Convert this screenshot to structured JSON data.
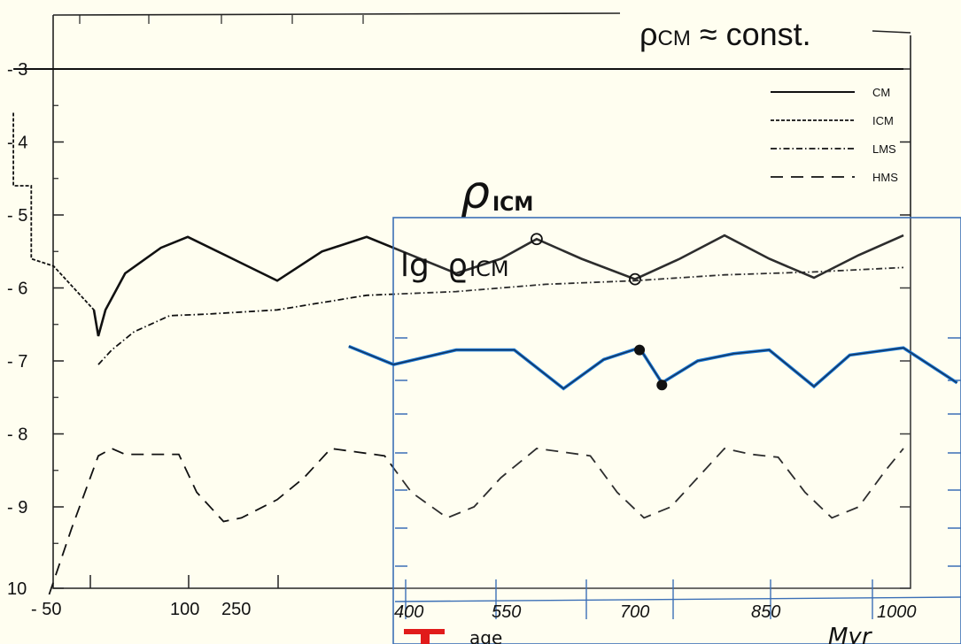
{
  "header_note": {
    "rho": "ρ",
    "sub": "CM",
    "rest": " ≈ const."
  },
  "colors": {
    "background": "#fffef0",
    "ink": "#111111",
    "blue": "#1a78d6",
    "border_blue": "#3b6fb6",
    "tag_red": "#e11b1b"
  },
  "chart_data": {
    "type": "line",
    "title": "",
    "xlabel": "",
    "ylabel": "",
    "xlim": [
      10,
      1060
    ],
    "ylim": [
      -10,
      -2.15
    ],
    "grid": false,
    "legend_placement": "top-right",
    "x_ticks": [
      "- 50",
      "100",
      "250",
      "400",
      "550",
      "700",
      "850",
      "1000"
    ],
    "y_ticks": [
      "- 3",
      "- 4",
      "- 5",
      "- 6",
      "- 7",
      "- 8",
      "- 9",
      "10"
    ],
    "legend": [
      {
        "label": "CM",
        "style": "solid"
      },
      {
        "label": "ICM",
        "style": "dotted"
      },
      {
        "label": "LMS",
        "style": "dashdot"
      },
      {
        "label": "HMS",
        "style": "dashed"
      }
    ],
    "series": [
      {
        "name": "CM",
        "style": "solid",
        "x": [
          5,
          1000
        ],
        "y": [
          -3.0,
          -3.0
        ]
      },
      {
        "name": "ICM",
        "style": "dotted",
        "x": [
          5,
          5,
          25,
          25,
          50,
          95,
          100,
          108,
          130,
          170,
          200,
          250,
          300,
          350,
          400,
          450,
          500,
          550,
          590,
          640,
          700,
          750,
          800,
          850,
          900,
          950,
          1000
        ],
        "y": [
          -3.6,
          -4.6,
          -4.6,
          -5.6,
          -5.7,
          -6.3,
          -6.66,
          -6.3,
          -5.8,
          -5.45,
          -5.3,
          -5.6,
          -5.9,
          -5.5,
          -5.3,
          -5.55,
          -5.8,
          -5.6,
          -5.33,
          -5.6,
          -5.88,
          -5.6,
          -5.28,
          -5.6,
          -5.86,
          -5.55,
          -5.28
        ]
      },
      {
        "name": "LMS",
        "style": "dashdot",
        "x": [
          100,
          115,
          140,
          180,
          220,
          300,
          400,
          500,
          600,
          700,
          800,
          900,
          1000
        ],
        "y": [
          -7.05,
          -6.85,
          -6.6,
          -6.38,
          -6.36,
          -6.3,
          -6.1,
          -6.05,
          -5.95,
          -5.9,
          -5.82,
          -5.78,
          -5.72
        ]
      },
      {
        "name": "HMS",
        "style": "dashed",
        "x": [
          45,
          70,
          100,
          115,
          130,
          190,
          210,
          240,
          260,
          300,
          330,
          360,
          390,
          420,
          450,
          490,
          520,
          550,
          590,
          620,
          650,
          680,
          710,
          740,
          770,
          800,
          830,
          860,
          890,
          920,
          950,
          980,
          1000
        ],
        "y": [
          -10.2,
          -9.3,
          -8.3,
          -8.2,
          -8.28,
          -8.28,
          -8.8,
          -9.2,
          -9.15,
          -8.9,
          -8.6,
          -8.2,
          -8.25,
          -8.3,
          -8.8,
          -9.15,
          -9.0,
          -8.6,
          -8.2,
          -8.25,
          -8.3,
          -8.8,
          -9.15,
          -9.0,
          -8.6,
          -8.2,
          -8.28,
          -8.32,
          -8.8,
          -9.15,
          -9.0,
          -8.5,
          -8.2
        ]
      }
    ],
    "annotations": [
      {
        "text": "ρ",
        "sub": "ICM",
        "kind": "handwritten"
      }
    ]
  },
  "inset": {
    "label_main": "lg ",
    "label_rho": "ϱ",
    "label_sub": "ICM",
    "x_ticks": [
      "400",
      "550",
      "700",
      "850",
      "1000"
    ],
    "below_label": "age",
    "unit_label": "Myr",
    "tag_letter": "T",
    "blue_curve": {
      "x": [
        380,
        430,
        500,
        565,
        620,
        665,
        705,
        730,
        770,
        810,
        850,
        900,
        940,
        1000,
        1060
      ],
      "y": [
        -6.8,
        -7.05,
        -6.85,
        -6.85,
        -7.38,
        -6.98,
        -6.82,
        -7.3,
        -7.0,
        -6.9,
        -6.85,
        -7.35,
        -6.92,
        -6.82,
        -7.3
      ]
    },
    "dots": [
      {
        "x": 705,
        "y": -6.85
      },
      {
        "x": 730,
        "y": -7.33
      }
    ],
    "circles": [
      {
        "x": 590,
        "y": -5.33
      },
      {
        "x": 700,
        "y": -5.88
      }
    ]
  }
}
